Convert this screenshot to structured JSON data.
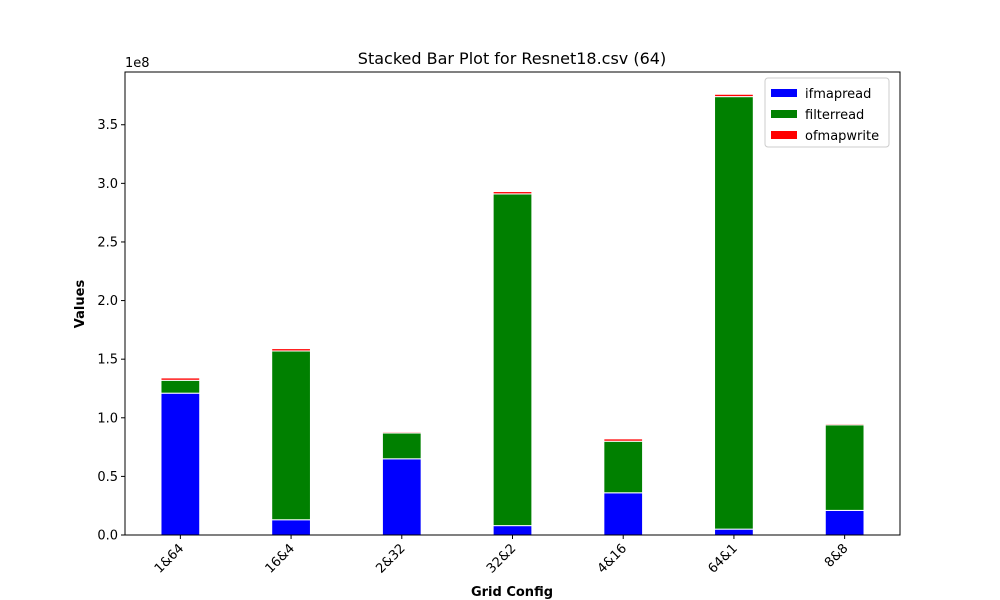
{
  "chart_data": {
    "type": "bar",
    "stacked": true,
    "title": "Stacked Bar Plot for Resnet18.csv (64)",
    "xlabel": "Grid Config",
    "ylabel": "Values",
    "y_offset_label": "1e8",
    "y_scale": 100000000,
    "ylim": [
      0,
      3.95
    ],
    "yticks": [
      0.0,
      0.5,
      1.0,
      1.5,
      2.0,
      2.5,
      3.0,
      3.5
    ],
    "ytick_labels": [
      "0.0",
      "0.5",
      "1.0",
      "1.5",
      "2.0",
      "2.5",
      "3.0",
      "3.5"
    ],
    "categories": [
      "1&64",
      "16&4",
      "2&32",
      "32&2",
      "4&16",
      "64&1",
      "8&8"
    ],
    "series": [
      {
        "name": "ifmapread",
        "color": "#0000ff",
        "values": [
          1.21,
          0.13,
          0.65,
          0.08,
          0.36,
          0.05,
          0.21
        ]
      },
      {
        "name": "filterread",
        "color": "#008000",
        "values": [
          0.11,
          1.44,
          0.22,
          2.83,
          0.44,
          3.69,
          0.73
        ]
      },
      {
        "name": "ofmapwrite",
        "color": "#ff0000",
        "values": [
          0.02,
          0.02,
          0.01,
          0.02,
          0.02,
          0.02,
          0.01
        ]
      }
    ],
    "legend_position": "top-right",
    "grid": false
  }
}
